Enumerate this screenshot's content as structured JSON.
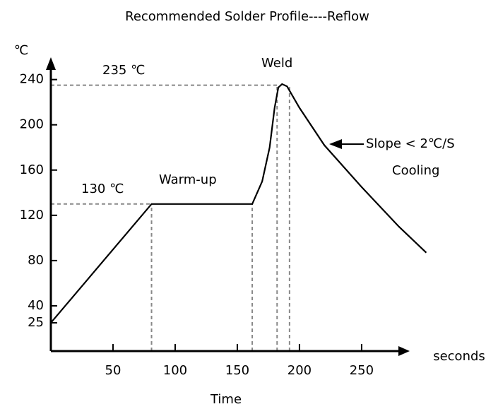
{
  "chart_data": {
    "type": "line",
    "title": "Recommended Solder Profile----Reflow",
    "y_label": "℃",
    "x_label": "Time",
    "x_unit": "seconds",
    "annotations": [
      "235 ℃",
      "130 ℃",
      "Warm-up",
      "Weld",
      "Slope < 2℃/S",
      "Cooling"
    ],
    "x": [
      0,
      81,
      162,
      170,
      176,
      180,
      183,
      186,
      190,
      200,
      220,
      250,
      280,
      302
    ],
    "series": [
      {
        "name": "Reflow",
        "color": "#000000",
        "values": [
          25,
          130,
          130,
          150,
          180,
          215,
          233,
          236,
          234,
          215,
          182,
          145,
          110,
          87
        ]
      }
    ],
    "guides": [
      {
        "x": 81,
        "y": 130
      },
      {
        "x": 162,
        "y": 130
      },
      {
        "x": 182,
        "y": 235
      },
      {
        "x": 192,
        "y": 235
      }
    ],
    "xlim": [
      0,
      283
    ],
    "ylim": [
      0,
      256
    ],
    "xticks": [
      50,
      100,
      150,
      200,
      250
    ],
    "yticks": [
      25,
      40,
      80,
      120,
      160,
      200,
      240
    ]
  }
}
